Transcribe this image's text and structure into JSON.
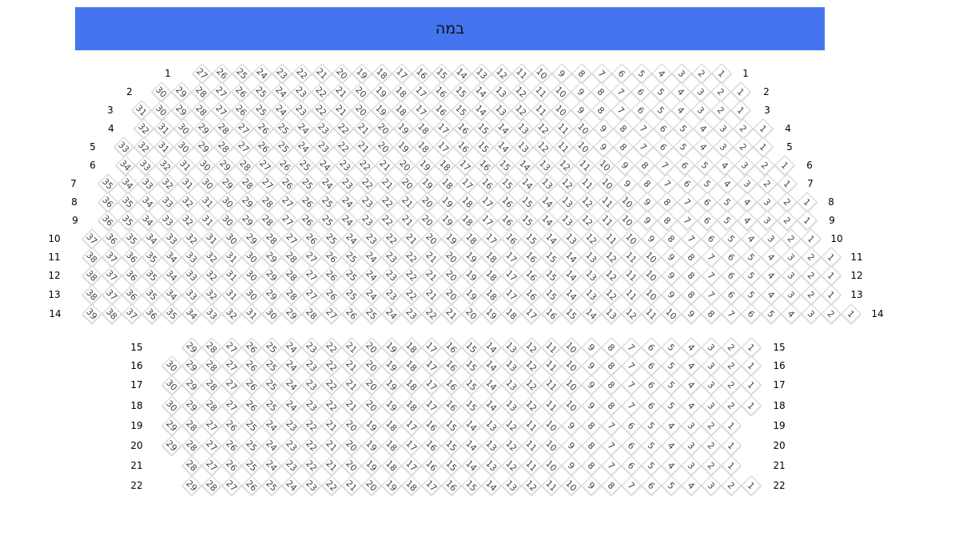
{
  "stage": {
    "label": "במה",
    "color": "#4475ee"
  },
  "rows": [
    {
      "label": "1",
      "seats": 27
    },
    {
      "label": "2",
      "seats": 30
    },
    {
      "label": "3",
      "seats": 31
    },
    {
      "label": "4",
      "seats": 32
    },
    {
      "label": "5",
      "seats": 33
    },
    {
      "label": "6",
      "seats": 34
    },
    {
      "label": "7",
      "seats": 35
    },
    {
      "label": "8",
      "seats": 36
    },
    {
      "label": "9",
      "seats": 36
    },
    {
      "label": "10",
      "seats": 37
    },
    {
      "label": "11",
      "seats": 38
    },
    {
      "label": "12",
      "seats": 38
    },
    {
      "label": "13",
      "seats": 38
    },
    {
      "label": "14",
      "seats": 39
    },
    {
      "label": "15",
      "seats": 29
    },
    {
      "label": "16",
      "seats": 30
    },
    {
      "label": "17",
      "seats": 30
    },
    {
      "label": "18",
      "seats": 30
    },
    {
      "label": "19",
      "seats": 29
    },
    {
      "label": "20",
      "seats": 29
    },
    {
      "label": "21",
      "seats": 28
    },
    {
      "label": "22",
      "seats": 29
    }
  ]
}
